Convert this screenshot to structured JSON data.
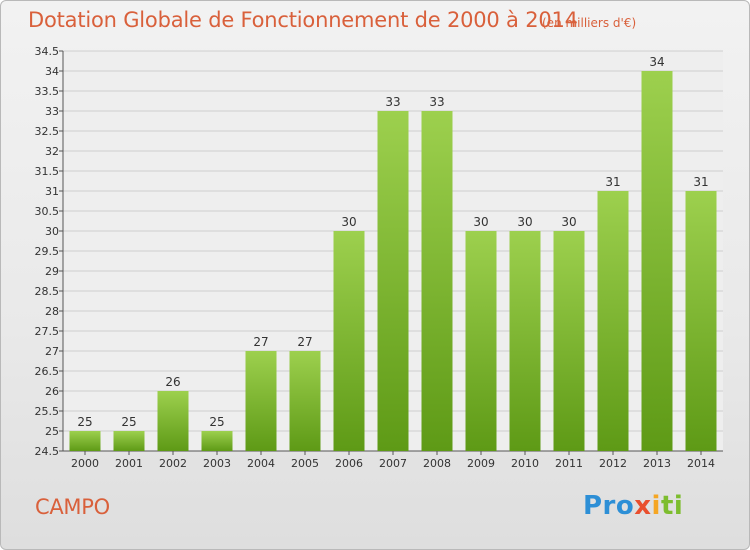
{
  "title": "Dotation Globale de Fonctionnement de 2000 à 2014",
  "subtitle": "(en milliers d'€)",
  "commune": "CAMPO",
  "logo": {
    "text": "Proxiti",
    "parts": [
      "Pro",
      "x",
      "i",
      "ti"
    ]
  },
  "colors": {
    "title": "#d9603b",
    "bar_top": "#9dd04e",
    "bar_bottom": "#5e9a16"
  },
  "chart_data": {
    "type": "bar",
    "title": "Dotation Globale de Fonctionnement de 2000 à 2014",
    "subtitle": "(en milliers d'€)",
    "categories": [
      "2000",
      "2001",
      "2002",
      "2003",
      "2004",
      "2005",
      "2006",
      "2007",
      "2008",
      "2009",
      "2010",
      "2011",
      "2012",
      "2013",
      "2014"
    ],
    "values": [
      25,
      25,
      26,
      25,
      27,
      27,
      30,
      33,
      33,
      30,
      30,
      30,
      31,
      34,
      31
    ],
    "ylim": [
      24.5,
      34.5
    ],
    "ytick_step": 0.5,
    "yticks": [
      "24.5",
      "25",
      "25.5",
      "26",
      "26.5",
      "27",
      "27.5",
      "28",
      "28.5",
      "29",
      "29.5",
      "30",
      "30.5",
      "31",
      "31.5",
      "32",
      "32.5",
      "33",
      "33.5",
      "34",
      "34.5"
    ],
    "grid": true,
    "xlabel": "",
    "ylabel": ""
  }
}
